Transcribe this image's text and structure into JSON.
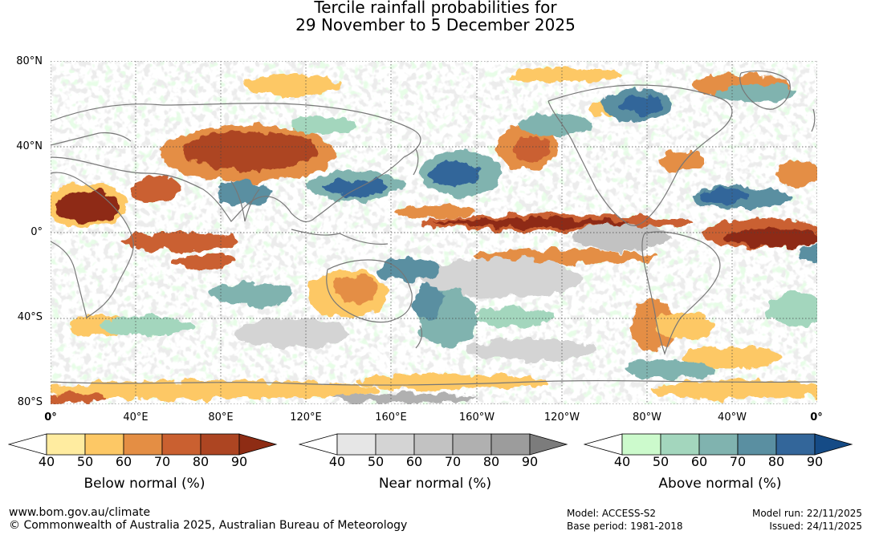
{
  "title": {
    "line1": "Tercile rainfall probabilities for",
    "line2": "29 November to 5 December 2025"
  },
  "map": {
    "lat_labels": [
      "80°N",
      "40°N",
      "0°",
      "40°S",
      "80°S"
    ],
    "lon_labels": [
      "0°",
      "40°E",
      "80°E",
      "120°E",
      "160°E",
      "160°W",
      "120°W",
      "80°W",
      "40°W",
      "0°"
    ],
    "gridlines": true,
    "coastline_color": "#777777"
  },
  "colorbars": [
    {
      "title": "Below normal (%)",
      "ticks": [
        "40",
        "50",
        "60",
        "70",
        "80",
        "90"
      ],
      "colors": [
        "#ffffff",
        "#ffeca0",
        "#fdc865",
        "#e48e44",
        "#ca6030",
        "#ad4522",
        "#8e2c14"
      ]
    },
    {
      "title": "Near normal (%)",
      "ticks": [
        "40",
        "50",
        "60",
        "70",
        "80",
        "90"
      ],
      "colors": [
        "#ffffff",
        "#e6e6e6",
        "#d4d4d4",
        "#c2c2c2",
        "#b0b0b0",
        "#9c9c9c",
        "#7c7c7c"
      ]
    },
    {
      "title": "Above normal (%)",
      "ticks": [
        "40",
        "50",
        "60",
        "70",
        "80",
        "90"
      ],
      "colors": [
        "#ffffff",
        "#ccfacc",
        "#a3d6bd",
        "#80b3af",
        "#5a8fa1",
        "#33669a",
        "#154b86"
      ]
    }
  ],
  "footer": {
    "website": "www.bom.gov.au/climate",
    "copyright": "© Commonwealth of Australia 2025, Australian Bureau of Meteorology",
    "model": "Model: ACCESS-S2",
    "base_period": "Base period: 1981-2018",
    "model_run": "Model run: 22/11/2025",
    "issued": "Issued: 24/11/2025"
  }
}
